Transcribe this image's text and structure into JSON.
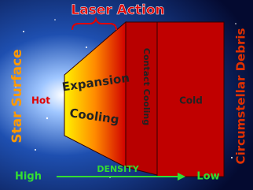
{
  "title": "Laser Action",
  "left_label": "Star Surface",
  "right_label": "Circumstellar Debris",
  "regions": {
    "hot": "Hot",
    "expansion": [
      "Expansion",
      "Cooling"
    ],
    "contact": "Contact Cooling",
    "cold": "Cold"
  },
  "density": {
    "high": "High",
    "label": "DENSITY",
    "low": "Low"
  }
}
